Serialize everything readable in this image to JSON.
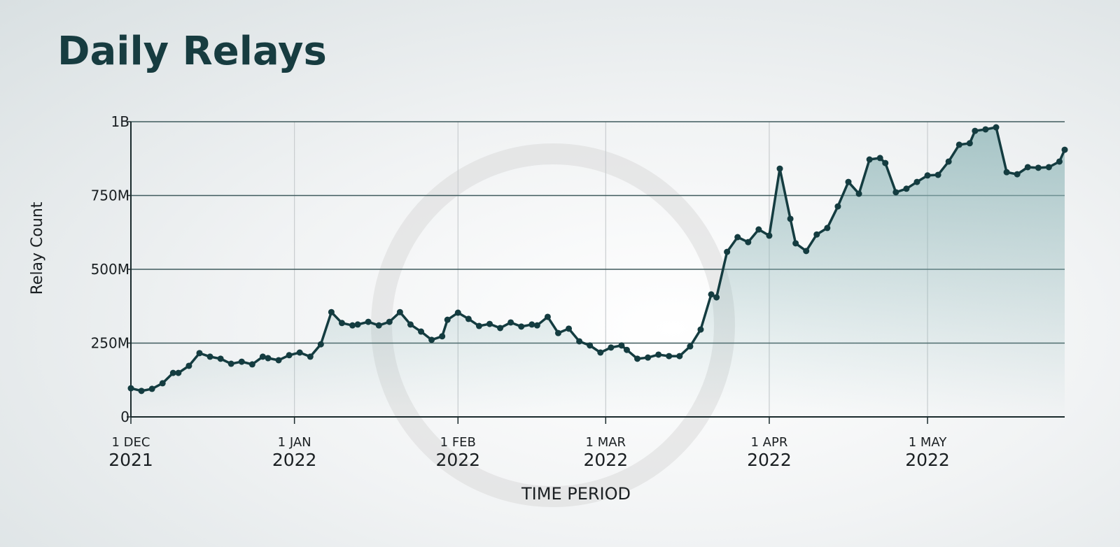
{
  "chart_data": {
    "type": "line",
    "title": "Daily Relays",
    "y_label": "Relay Count",
    "x_label": "TIME PERIOD",
    "color": "#143c40",
    "x": [
      "2021-12-01",
      "2021-12-03",
      "2021-12-05",
      "2021-12-07",
      "2021-12-09",
      "2021-12-10",
      "2021-12-12",
      "2021-12-14",
      "2021-12-16",
      "2021-12-18",
      "2021-12-20",
      "2021-12-22",
      "2021-12-24",
      "2021-12-26",
      "2021-12-27",
      "2021-12-29",
      "2021-12-31",
      "2022-01-02",
      "2022-01-04",
      "2022-01-06",
      "2022-01-08",
      "2022-01-10",
      "2022-01-12",
      "2022-01-13",
      "2022-01-15",
      "2022-01-17",
      "2022-01-19",
      "2022-01-21",
      "2022-01-23",
      "2022-01-25",
      "2022-01-27",
      "2022-01-29",
      "2022-01-30",
      "2022-02-01",
      "2022-02-03",
      "2022-02-05",
      "2022-02-07",
      "2022-02-09",
      "2022-02-11",
      "2022-02-13",
      "2022-02-15",
      "2022-02-16",
      "2022-02-18",
      "2022-02-20",
      "2022-02-22",
      "2022-02-24",
      "2022-02-26",
      "2022-02-28",
      "2022-03-02",
      "2022-03-04",
      "2022-03-05",
      "2022-03-07",
      "2022-03-09",
      "2022-03-11",
      "2022-03-13",
      "2022-03-15",
      "2022-03-17",
      "2022-03-19",
      "2022-03-21",
      "2022-03-22",
      "2022-03-24",
      "2022-03-26",
      "2022-03-28",
      "2022-03-30",
      "2022-04-01",
      "2022-04-03",
      "2022-04-05",
      "2022-04-06",
      "2022-04-08",
      "2022-04-10",
      "2022-04-12",
      "2022-04-14",
      "2022-04-16",
      "2022-04-18",
      "2022-04-20",
      "2022-04-22",
      "2022-04-23",
      "2022-04-25",
      "2022-04-27",
      "2022-04-29",
      "2022-05-01",
      "2022-05-03",
      "2022-05-05",
      "2022-05-07",
      "2022-05-09",
      "2022-05-10",
      "2022-05-12",
      "2022-05-14",
      "2022-05-16",
      "2022-05-18",
      "2022-05-20",
      "2022-05-22",
      "2022-05-24",
      "2022-05-26",
      "2022-05-27"
    ],
    "values": [
      97000000,
      88000000,
      95000000,
      114000000,
      149000000,
      149000000,
      173000000,
      216000000,
      204000000,
      197000000,
      180000000,
      187000000,
      178000000,
      204000000,
      199000000,
      192000000,
      209000000,
      218000000,
      204000000,
      246000000,
      355000000,
      318000000,
      310000000,
      313000000,
      322000000,
      310000000,
      322000000,
      355000000,
      313000000,
      289000000,
      261000000,
      273000000,
      329000000,
      353000000,
      332000000,
      308000000,
      315000000,
      301000000,
      320000000,
      306000000,
      313000000,
      310000000,
      339000000,
      284000000,
      299000000,
      256000000,
      242000000,
      218000000,
      235000000,
      242000000,
      227000000,
      197000000,
      201000000,
      211000000,
      206000000,
      206000000,
      239000000,
      296000000,
      415000000,
      405000000,
      559000000,
      609000000,
      592000000,
      635000000,
      614000000,
      841000000,
      671000000,
      588000000,
      562000000,
      618000000,
      640000000,
      713000000,
      796000000,
      756000000,
      872000000,
      877000000,
      860000000,
      761000000,
      773000000,
      796000000,
      818000000,
      820000000,
      865000000,
      922000000,
      927000000,
      969000000,
      974000000,
      981000000,
      829000000,
      822000000,
      846000000,
      844000000,
      846000000,
      865000000,
      905000000
    ],
    "xlim": [
      "2021-12-01",
      "2022-05-27"
    ],
    "xticks": [
      {
        "value": "2021-12-01",
        "label": "1 DEC\n2021"
      },
      {
        "value": "2022-01-01",
        "label": "1 JAN\n2022"
      },
      {
        "value": "2022-02-01",
        "label": "1 FEB\n2022"
      },
      {
        "value": "2022-03-01",
        "label": "1 MAR\n2022"
      },
      {
        "value": "2022-04-01",
        "label": "1 APR\n2022"
      },
      {
        "value": "2022-05-01",
        "label": "1 MAY\n2022"
      }
    ],
    "ylim": [
      0,
      1000000000
    ],
    "yticks": [
      {
        "value": 0,
        "label": "0"
      },
      {
        "value": 250000000,
        "label": "250M"
      },
      {
        "value": 500000000,
        "label": "500M"
      },
      {
        "value": 750000000,
        "label": "750M"
      },
      {
        "value": 1000000000,
        "label": "1B"
      }
    ],
    "grid": true
  }
}
